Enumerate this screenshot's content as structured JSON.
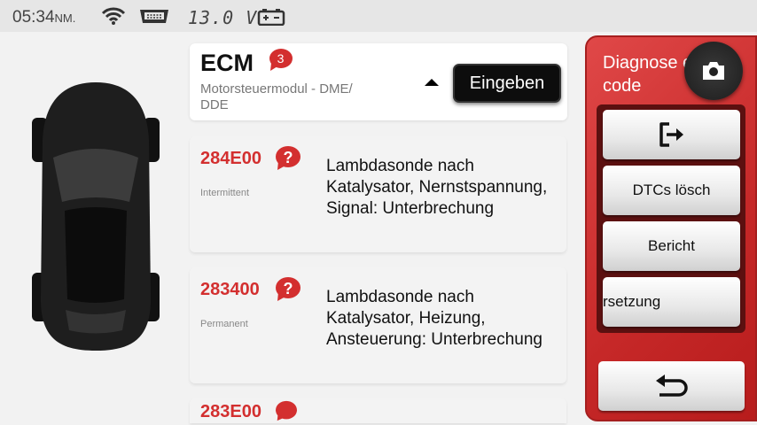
{
  "status_bar": {
    "time": "05:34",
    "ampm": "NM.",
    "voltage": "13.0 V",
    "icons": [
      "wifi-icon",
      "obd-connector-icon",
      "battery-icon"
    ]
  },
  "header": {
    "module": "ECM",
    "count": "3",
    "description": "Motorsteuermodul - DME/ DDE",
    "enter_label": "Eingeben"
  },
  "dtcs": [
    {
      "code": "284E00",
      "status": "Intermittent",
      "description": "Lambdasonde nach Katalysator, Nernstspannung, Signal: Unterbrechung"
    },
    {
      "code": "283400",
      "status": "Permanent",
      "description": "Lambdasonde nach Katalysator, Heizung, Ansteuerung: Unterbrechung"
    },
    {
      "code": "283E00",
      "status": "",
      "description": ""
    }
  ],
  "panel": {
    "title": "Diagnose er code",
    "buttons": {
      "exit_icon": "exit-icon",
      "clear": "DTCs lösch",
      "report": "Bericht",
      "translate": "rsetzung",
      "back_icon": "back-icon"
    }
  },
  "colors": {
    "accent": "#d32f2f",
    "panel": "#c62828"
  }
}
